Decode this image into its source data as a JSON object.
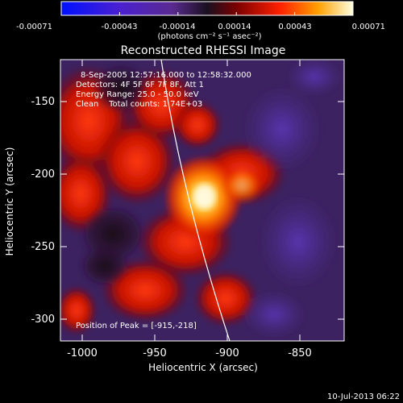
{
  "colorbar": {
    "ticks": [
      "-0.00071",
      "-0.00043",
      "-0.00014",
      "0.00014",
      "0.00043",
      "0.00071"
    ],
    "units": "(photons cm⁻² s⁻¹ asec⁻²)"
  },
  "plot": {
    "title": "Reconstructed RHESSI Image",
    "info_lines": [
      "8-Sep-2005 12:57:16.000 to 12:58:32.000",
      "Detectors: 4F 5F 6F 7F 8F, Att 1",
      "Energy Range: 25.0 - 50.0 keV",
      "Clean    Total counts: 1.74E+03"
    ],
    "peak_text": "Position of Peak = [-915,-218]",
    "xlabel": "Heliocentric X (arcsec)",
    "ylabel": "Heliocentric Y (arcsec)",
    "xticks": [
      "-1000",
      "-950",
      "-900",
      "-850"
    ],
    "yticks": [
      "-150",
      "-200",
      "-250",
      "-300"
    ]
  },
  "footer": {
    "timestamp": "10-Jul-2013 06:22"
  },
  "colors": {
    "background": "#000000",
    "foreground": "#ffffff",
    "limb": "#ffffff"
  }
}
